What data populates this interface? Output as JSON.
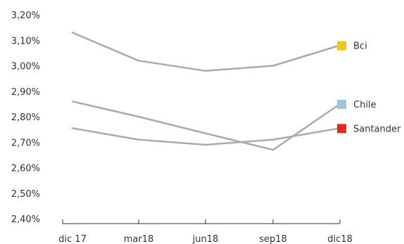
{
  "chart_data": {
    "type": "line",
    "categories": [
      "dic 17",
      "mar18",
      "jun18",
      "sep18",
      "dic18"
    ],
    "y_ticks": [
      "3,20%",
      "3,10%",
      "3,00%",
      "2,90%",
      "2,80%",
      "2,70%",
      "2,60%",
      "2,50%",
      "2,40%"
    ],
    "ylim": [
      2.4,
      3.2
    ],
    "grid": false,
    "series": [
      {
        "name": "Bci",
        "color": "#f5c518",
        "line_color": "#aaaaaa",
        "values": [
          3.13,
          3.02,
          2.98,
          3.0,
          3.08
        ]
      },
      {
        "name": "Chile",
        "color": "#9fc4d8",
        "line_color": "#aaaaaa",
        "values": [
          2.86,
          2.8,
          2.735,
          2.67,
          2.85
        ]
      },
      {
        "name": "Santander",
        "color": "#e02a1e",
        "line_color": "#aaaaaa",
        "values": [
          2.755,
          2.71,
          2.69,
          2.71,
          2.755
        ]
      }
    ],
    "legend_position": "right"
  }
}
